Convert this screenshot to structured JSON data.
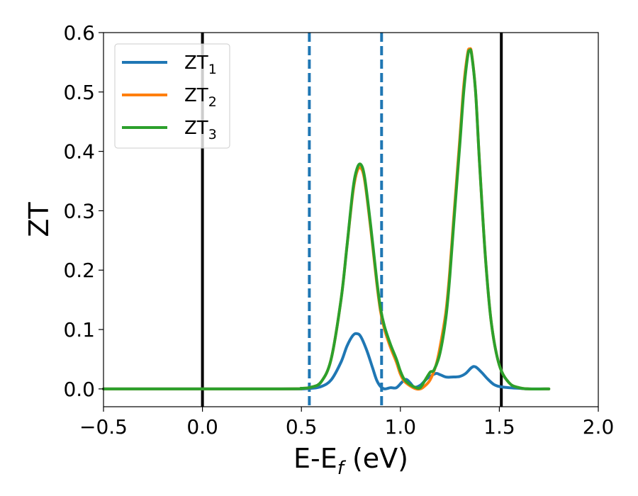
{
  "chart_data": {
    "type": "line",
    "xlabel": "E-E",
    "xlabel_subscript": "f",
    "xlabel_unit": " (eV)",
    "ylabel": "ZT",
    "xlim": [
      -0.5,
      2.0
    ],
    "ylim": [
      -0.03,
      0.6
    ],
    "xticks": [
      -0.5,
      0.0,
      0.5,
      1.0,
      1.5,
      2.0
    ],
    "xtick_labels": [
      "−0.5",
      "0.0",
      "0.5",
      "1.0",
      "1.5",
      "2.0"
    ],
    "yticks": [
      0.0,
      0.1,
      0.2,
      0.3,
      0.4,
      0.5,
      0.6
    ],
    "ytick_labels": [
      "0.0",
      "0.1",
      "0.2",
      "0.3",
      "0.4",
      "0.5",
      "0.6"
    ],
    "grid": false,
    "legend_position": "top-left",
    "vlines_solid": [
      0.0,
      1.51
    ],
    "vlines_dashed": [
      0.54,
      0.905
    ],
    "vline_solid_color": "#000000",
    "vline_dashed_color": "#1f77b4",
    "series": [
      {
        "name": "ZT",
        "name_subscript": "1",
        "color": "#1f77b4",
        "x": [
          -0.5,
          0.4,
          0.5,
          0.55,
          0.6,
          0.65,
          0.7,
          0.73,
          0.76,
          0.78,
          0.8,
          0.83,
          0.86,
          0.88,
          0.9,
          0.92,
          0.95,
          0.98,
          1.01,
          1.03,
          1.05,
          1.07,
          1.1,
          1.13,
          1.15,
          1.18,
          1.2,
          1.23,
          1.26,
          1.3,
          1.33,
          1.36,
          1.38,
          1.41,
          1.44,
          1.47,
          1.5,
          1.55,
          1.6,
          1.65,
          1.75
        ],
        "y": [
          0.0,
          0.0,
          0.0,
          0.001,
          0.004,
          0.015,
          0.045,
          0.072,
          0.09,
          0.093,
          0.088,
          0.065,
          0.035,
          0.015,
          0.004,
          0.0,
          0.002,
          0.002,
          0.012,
          0.016,
          0.01,
          0.003,
          0.006,
          0.016,
          0.021,
          0.026,
          0.024,
          0.02,
          0.02,
          0.021,
          0.026,
          0.036,
          0.037,
          0.028,
          0.017,
          0.008,
          0.004,
          0.002,
          0.001,
          0.0,
          0.0
        ]
      },
      {
        "name": "ZT",
        "name_subscript": "2",
        "color": "#ff7f0e",
        "x": [
          -0.5,
          0.4,
          0.5,
          0.55,
          0.6,
          0.65,
          0.7,
          0.73,
          0.76,
          0.78,
          0.8,
          0.82,
          0.85,
          0.88,
          0.9,
          0.92,
          0.95,
          0.98,
          1.0,
          1.02,
          1.05,
          1.08,
          1.1,
          1.12,
          1.15,
          1.18,
          1.2,
          1.23,
          1.25,
          1.27,
          1.3,
          1.32,
          1.34,
          1.35,
          1.36,
          1.38,
          1.4,
          1.43,
          1.46,
          1.5,
          1.55,
          1.6,
          1.65,
          1.75
        ],
        "y": [
          0.0,
          0.0,
          0.001,
          0.003,
          0.012,
          0.05,
          0.15,
          0.24,
          0.33,
          0.365,
          0.372,
          0.35,
          0.27,
          0.18,
          0.13,
          0.1,
          0.07,
          0.045,
          0.025,
          0.013,
          0.005,
          0.0,
          0.0,
          0.004,
          0.015,
          0.04,
          0.07,
          0.13,
          0.2,
          0.29,
          0.42,
          0.51,
          0.565,
          0.572,
          0.565,
          0.5,
          0.38,
          0.22,
          0.11,
          0.04,
          0.01,
          0.002,
          0.0,
          0.0
        ]
      },
      {
        "name": "ZT",
        "name_subscript": "3",
        "color": "#2ca02c",
        "x": [
          -0.5,
          0.4,
          0.5,
          0.55,
          0.6,
          0.65,
          0.7,
          0.73,
          0.76,
          0.78,
          0.8,
          0.82,
          0.85,
          0.88,
          0.9,
          0.92,
          0.95,
          0.98,
          1.0,
          1.02,
          1.05,
          1.08,
          1.1,
          1.12,
          1.15,
          1.17,
          1.2,
          1.23,
          1.25,
          1.27,
          1.3,
          1.32,
          1.34,
          1.35,
          1.36,
          1.38,
          1.4,
          1.43,
          1.46,
          1.5,
          1.55,
          1.6,
          1.65,
          1.75
        ],
        "y": [
          0.0,
          0.0,
          0.001,
          0.003,
          0.012,
          0.05,
          0.15,
          0.24,
          0.335,
          0.37,
          0.378,
          0.355,
          0.275,
          0.185,
          0.135,
          0.105,
          0.075,
          0.05,
          0.03,
          0.016,
          0.007,
          0.002,
          0.002,
          0.012,
          0.028,
          0.032,
          0.06,
          0.12,
          0.19,
          0.28,
          0.41,
          0.5,
          0.56,
          0.57,
          0.563,
          0.5,
          0.38,
          0.22,
          0.11,
          0.04,
          0.01,
          0.002,
          0.0,
          0.0
        ]
      }
    ]
  }
}
